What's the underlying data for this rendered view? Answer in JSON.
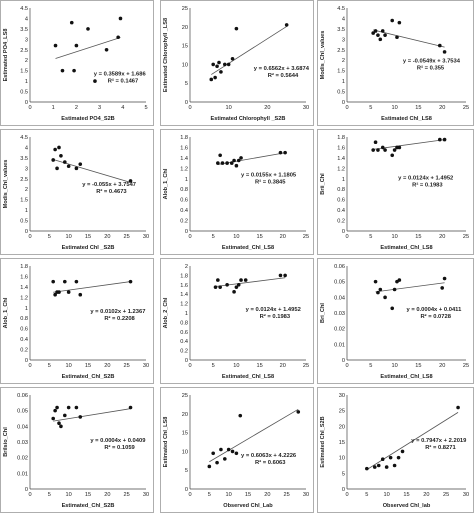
{
  "chart_data": [
    {
      "type": "scatter",
      "xlabel": "Estimated PO4_S2B",
      "ylabel": "Estimated PO4_LS8",
      "xlim": [
        0,
        5
      ],
      "ylim": [
        0,
        4.5
      ],
      "xticks": [
        0,
        1,
        2,
        3,
        4,
        5
      ],
      "yticks": [
        0,
        0.5,
        1,
        1.5,
        2,
        2.5,
        3,
        3.5,
        4,
        4.5
      ],
      "points": [
        [
          1.1,
          2.7
        ],
        [
          1.4,
          1.5
        ],
        [
          1.8,
          3.8
        ],
        [
          1.9,
          1.5
        ],
        [
          2.0,
          2.7
        ],
        [
          2.5,
          3.5
        ],
        [
          2.8,
          1.0
        ],
        [
          3.3,
          2.5
        ],
        [
          3.8,
          3.1
        ],
        [
          3.9,
          4.0
        ]
      ],
      "trendline": [
        0.3589,
        1.686
      ],
      "equation": "y = 0.3589x + 1.686",
      "r2": "R² = 0.1467"
    },
    {
      "type": "scatter",
      "xlabel": "Estimated Chlorophyll _S2B",
      "ylabel": "Estimated Chlorophyll _LS8",
      "xlim": [
        0,
        30
      ],
      "ylim": [
        0,
        25
      ],
      "xticks": [
        0,
        10,
        20,
        30
      ],
      "yticks": [
        0,
        5,
        10,
        15,
        20,
        25
      ],
      "points": [
        [
          5.5,
          6.0
        ],
        [
          6.0,
          10.0
        ],
        [
          6.5,
          6.5
        ],
        [
          7.0,
          9.5
        ],
        [
          7.5,
          10.5
        ],
        [
          8.0,
          8.0
        ],
        [
          9.0,
          10.0
        ],
        [
          10.0,
          10.0
        ],
        [
          11.0,
          11.5
        ],
        [
          12.0,
          19.5
        ],
        [
          25.0,
          20.5
        ]
      ],
      "trendline": [
        0.6562,
        3.6874
      ],
      "equation": "y = 0.6562x + 3.6874",
      "r2": "R² = 0.5644"
    },
    {
      "type": "scatter",
      "xlabel": "Estimated Chl_LS8",
      "ylabel": "Modis_Chl_values",
      "xlim": [
        0,
        25
      ],
      "ylim": [
        0,
        4.5
      ],
      "xticks": [
        0,
        5,
        10,
        15,
        20,
        25
      ],
      "yticks": [
        0,
        0.5,
        1,
        1.5,
        2,
        2.5,
        3,
        3.5,
        4,
        4.5
      ],
      "points": [
        [
          5.5,
          3.3
        ],
        [
          6.0,
          3.4
        ],
        [
          6.5,
          3.2
        ],
        [
          7.0,
          3.0
        ],
        [
          7.5,
          3.4
        ],
        [
          8.0,
          3.2
        ],
        [
          9.5,
          3.9
        ],
        [
          10.5,
          3.1
        ],
        [
          11.0,
          3.8
        ],
        [
          19.5,
          2.7
        ],
        [
          20.5,
          2.4
        ]
      ],
      "trendline": [
        -0.0549,
        3.7534
      ],
      "equation": "y = -0.0549x + 3.7534",
      "r2": "R² = 0.355"
    },
    {
      "type": "scatter",
      "xlabel": "Estimated Chl _S2B",
      "ylabel": "Modis_Chl_values",
      "xlim": [
        0,
        30
      ],
      "ylim": [
        0,
        4.5
      ],
      "xticks": [
        0,
        5,
        10,
        15,
        20,
        25,
        30
      ],
      "yticks": [
        0,
        0.5,
        1,
        1.5,
        2,
        2.5,
        3,
        3.5,
        4,
        4.5
      ],
      "points": [
        [
          6.0,
          3.4
        ],
        [
          6.5,
          3.9
        ],
        [
          7.0,
          3.0
        ],
        [
          7.5,
          4.0
        ],
        [
          8.0,
          3.6
        ],
        [
          9.0,
          3.3
        ],
        [
          10.0,
          3.1
        ],
        [
          12.0,
          3.0
        ],
        [
          13.0,
          3.2
        ],
        [
          26.0,
          2.4
        ]
      ],
      "trendline": [
        -0.055,
        3.7547
      ],
      "equation": "y = -0.055x + 3.7547",
      "r2": "R² = 0.4673"
    },
    {
      "type": "scatter",
      "xlabel": "Estimated_Chl_LS8",
      "ylabel": "Alob_1_Chl",
      "xlim": [
        0,
        25
      ],
      "ylim": [
        0,
        1.8
      ],
      "xticks": [
        0,
        5,
        10,
        15,
        20,
        25
      ],
      "yticks": [
        0,
        0.2,
        0.4,
        0.6,
        0.8,
        1,
        1.2,
        1.4,
        1.6,
        1.8
      ],
      "points": [
        [
          6.0,
          1.3
        ],
        [
          6.5,
          1.45
        ],
        [
          7.0,
          1.3
        ],
        [
          8.0,
          1.3
        ],
        [
          9.0,
          1.3
        ],
        [
          9.5,
          1.35
        ],
        [
          10.0,
          1.25
        ],
        [
          10.5,
          1.35
        ],
        [
          11.0,
          1.4
        ],
        [
          19.5,
          1.5
        ],
        [
          20.5,
          1.5
        ]
      ],
      "trendline": [
        0.0155,
        1.1805
      ],
      "equation": "y = 0.0155x + 1.1805",
      "r2": "R² = 0.3845"
    },
    {
      "type": "scatter",
      "xlabel": "Estimated_Chl_LS8",
      "ylabel": "Brii_Chl",
      "xlim": [
        0,
        25
      ],
      "ylim": [
        0,
        1.8
      ],
      "xticks": [
        0,
        5,
        10,
        15,
        20,
        25
      ],
      "yticks": [
        0,
        0.2,
        0.4,
        0.6,
        0.8,
        1,
        1.2,
        1.4,
        1.6,
        1.8
      ],
      "points": [
        [
          5.5,
          1.55
        ],
        [
          6.0,
          1.7
        ],
        [
          6.5,
          1.55
        ],
        [
          7.5,
          1.6
        ],
        [
          8.0,
          1.55
        ],
        [
          9.5,
          1.45
        ],
        [
          10.0,
          1.55
        ],
        [
          10.5,
          1.6
        ],
        [
          11.0,
          1.6
        ],
        [
          19.5,
          1.75
        ],
        [
          20.5,
          1.75
        ]
      ],
      "trendline": [
        0.0124,
        1.4952
      ],
      "equation": "y = 0.0124x + 1.4952",
      "r2": "R² = 0.1983"
    },
    {
      "type": "scatter",
      "xlabel": "Estimated_Chl_S2B",
      "ylabel": "Alob_1_Chl",
      "xlim": [
        0,
        30
      ],
      "ylim": [
        0,
        1.8
      ],
      "xticks": [
        0,
        5,
        10,
        15,
        20,
        25,
        30
      ],
      "yticks": [
        0,
        0.2,
        0.4,
        0.6,
        0.8,
        1,
        1.2,
        1.4,
        1.6,
        1.8
      ],
      "points": [
        [
          6.0,
          1.5
        ],
        [
          6.5,
          1.25
        ],
        [
          7.0,
          1.3
        ],
        [
          7.5,
          1.3
        ],
        [
          9.0,
          1.5
        ],
        [
          10.0,
          1.3
        ],
        [
          12.0,
          1.5
        ],
        [
          13.0,
          1.25
        ],
        [
          26.0,
          1.5
        ]
      ],
      "trendline": [
        0.0102,
        1.2367
      ],
      "equation": "y = 0.0102x + 1.2367",
      "r2": "R² = 0.2208"
    },
    {
      "type": "scatter",
      "xlabel": "Estimated_Chl_LS8",
      "ylabel": "Alob_2_Chl",
      "xlim": [
        0,
        25
      ],
      "ylim": [
        0,
        2
      ],
      "xticks": [
        0,
        5,
        10,
        15,
        20,
        25
      ],
      "yticks": [
        0,
        0.2,
        0.4,
        0.6,
        0.8,
        1,
        1.2,
        1.4,
        1.6,
        1.8,
        2
      ],
      "points": [
        [
          5.5,
          1.55
        ],
        [
          6.0,
          1.7
        ],
        [
          6.5,
          1.55
        ],
        [
          8.0,
          1.6
        ],
        [
          9.5,
          1.45
        ],
        [
          10.0,
          1.55
        ],
        [
          10.5,
          1.6
        ],
        [
          11.0,
          1.7
        ],
        [
          12.0,
          1.7
        ],
        [
          19.5,
          1.8
        ],
        [
          20.5,
          1.8
        ]
      ],
      "trendline": [
        0.0124,
        1.4952
      ],
      "equation": "y = 0.0124x + 1.4952",
      "r2": "R² = 0.1983"
    },
    {
      "type": "scatter",
      "xlabel": "Estimated_Chl_LS8",
      "ylabel": "Bri_Chl",
      "xlim": [
        0,
        25
      ],
      "ylim": [
        0,
        0.06
      ],
      "xticks": [
        0,
        5,
        10,
        15,
        20,
        25
      ],
      "yticks": [
        0,
        0.01,
        0.02,
        0.03,
        0.04,
        0.05,
        0.06
      ],
      "points": [
        [
          6.0,
          0.05
        ],
        [
          6.5,
          0.043
        ],
        [
          7.0,
          0.045
        ],
        [
          8.0,
          0.04
        ],
        [
          9.5,
          0.033
        ],
        [
          10.0,
          0.045
        ],
        [
          10.5,
          0.05
        ],
        [
          11.0,
          0.051
        ],
        [
          20.0,
          0.046
        ],
        [
          20.5,
          0.052
        ]
      ],
      "trendline": [
        0.0004,
        0.0411
      ],
      "equation": "y = 0.0004x + 0.0411",
      "r2": "R² = 0.0728"
    },
    {
      "type": "scatter",
      "xlabel": "Estimated_Chl_S2B",
      "ylabel": "Brilsio_Chl",
      "xlim": [
        0,
        30
      ],
      "ylim": [
        0,
        0.06
      ],
      "xticks": [
        0,
        5,
        10,
        15,
        20,
        25,
        30
      ],
      "yticks": [
        0,
        0.01,
        0.02,
        0.03,
        0.04,
        0.05,
        0.06
      ],
      "points": [
        [
          6.0,
          0.045
        ],
        [
          6.5,
          0.05
        ],
        [
          7.0,
          0.052
        ],
        [
          7.5,
          0.042
        ],
        [
          8.0,
          0.04
        ],
        [
          9.0,
          0.047
        ],
        [
          10.0,
          0.052
        ],
        [
          12.0,
          0.052
        ],
        [
          13.0,
          0.046
        ],
        [
          26.0,
          0.052
        ]
      ],
      "trendline": [
        0.0004,
        0.0409
      ],
      "equation": "y = 0.0004x + 0.0409",
      "r2": "R² = 0.1059"
    },
    {
      "type": "scatter",
      "xlabel": "Observed Chl_Lab",
      "ylabel": "Estimated Chl_LS8",
      "xlim": [
        0,
        30
      ],
      "ylim": [
        0,
        25
      ],
      "xticks": [
        0,
        5,
        10,
        15,
        20,
        25,
        30
      ],
      "yticks": [
        0,
        5,
        10,
        15,
        20,
        25
      ],
      "points": [
        [
          5.0,
          6.0
        ],
        [
          6.0,
          9.5
        ],
        [
          7.0,
          7.0
        ],
        [
          8.0,
          10.5
        ],
        [
          9.0,
          8.0
        ],
        [
          10.0,
          10.5
        ],
        [
          11.0,
          10.0
        ],
        [
          12.0,
          9.5
        ],
        [
          13.0,
          19.5
        ],
        [
          28.0,
          20.5
        ]
      ],
      "trendline": [
        0.6063,
        4.2226
      ],
      "equation": "y = 0.6063x + 4.2226",
      "r2": "R² = 0.6063"
    },
    {
      "type": "scatter",
      "xlabel": "Observed Chl_lab",
      "ylabel": "Estimated Chl_S2B",
      "xlim": [
        0,
        30
      ],
      "ylim": [
        0,
        30
      ],
      "xticks": [
        0,
        5,
        10,
        15,
        20,
        25,
        30
      ],
      "yticks": [
        0,
        5,
        10,
        15,
        20,
        25,
        30
      ],
      "points": [
        [
          5.0,
          6.5
        ],
        [
          7.0,
          7.0
        ],
        [
          8.0,
          7.5
        ],
        [
          9.0,
          9.5
        ],
        [
          10.0,
          7.0
        ],
        [
          11.0,
          10.0
        ],
        [
          12.0,
          7.5
        ],
        [
          13.0,
          10.0
        ],
        [
          14.0,
          12.0
        ],
        [
          28.0,
          26.0
        ]
      ],
      "trendline": [
        0.7947,
        2.2019
      ],
      "equation": "y = 0.7947x + 2.2019",
      "r2": "R² = 0.8271"
    }
  ]
}
